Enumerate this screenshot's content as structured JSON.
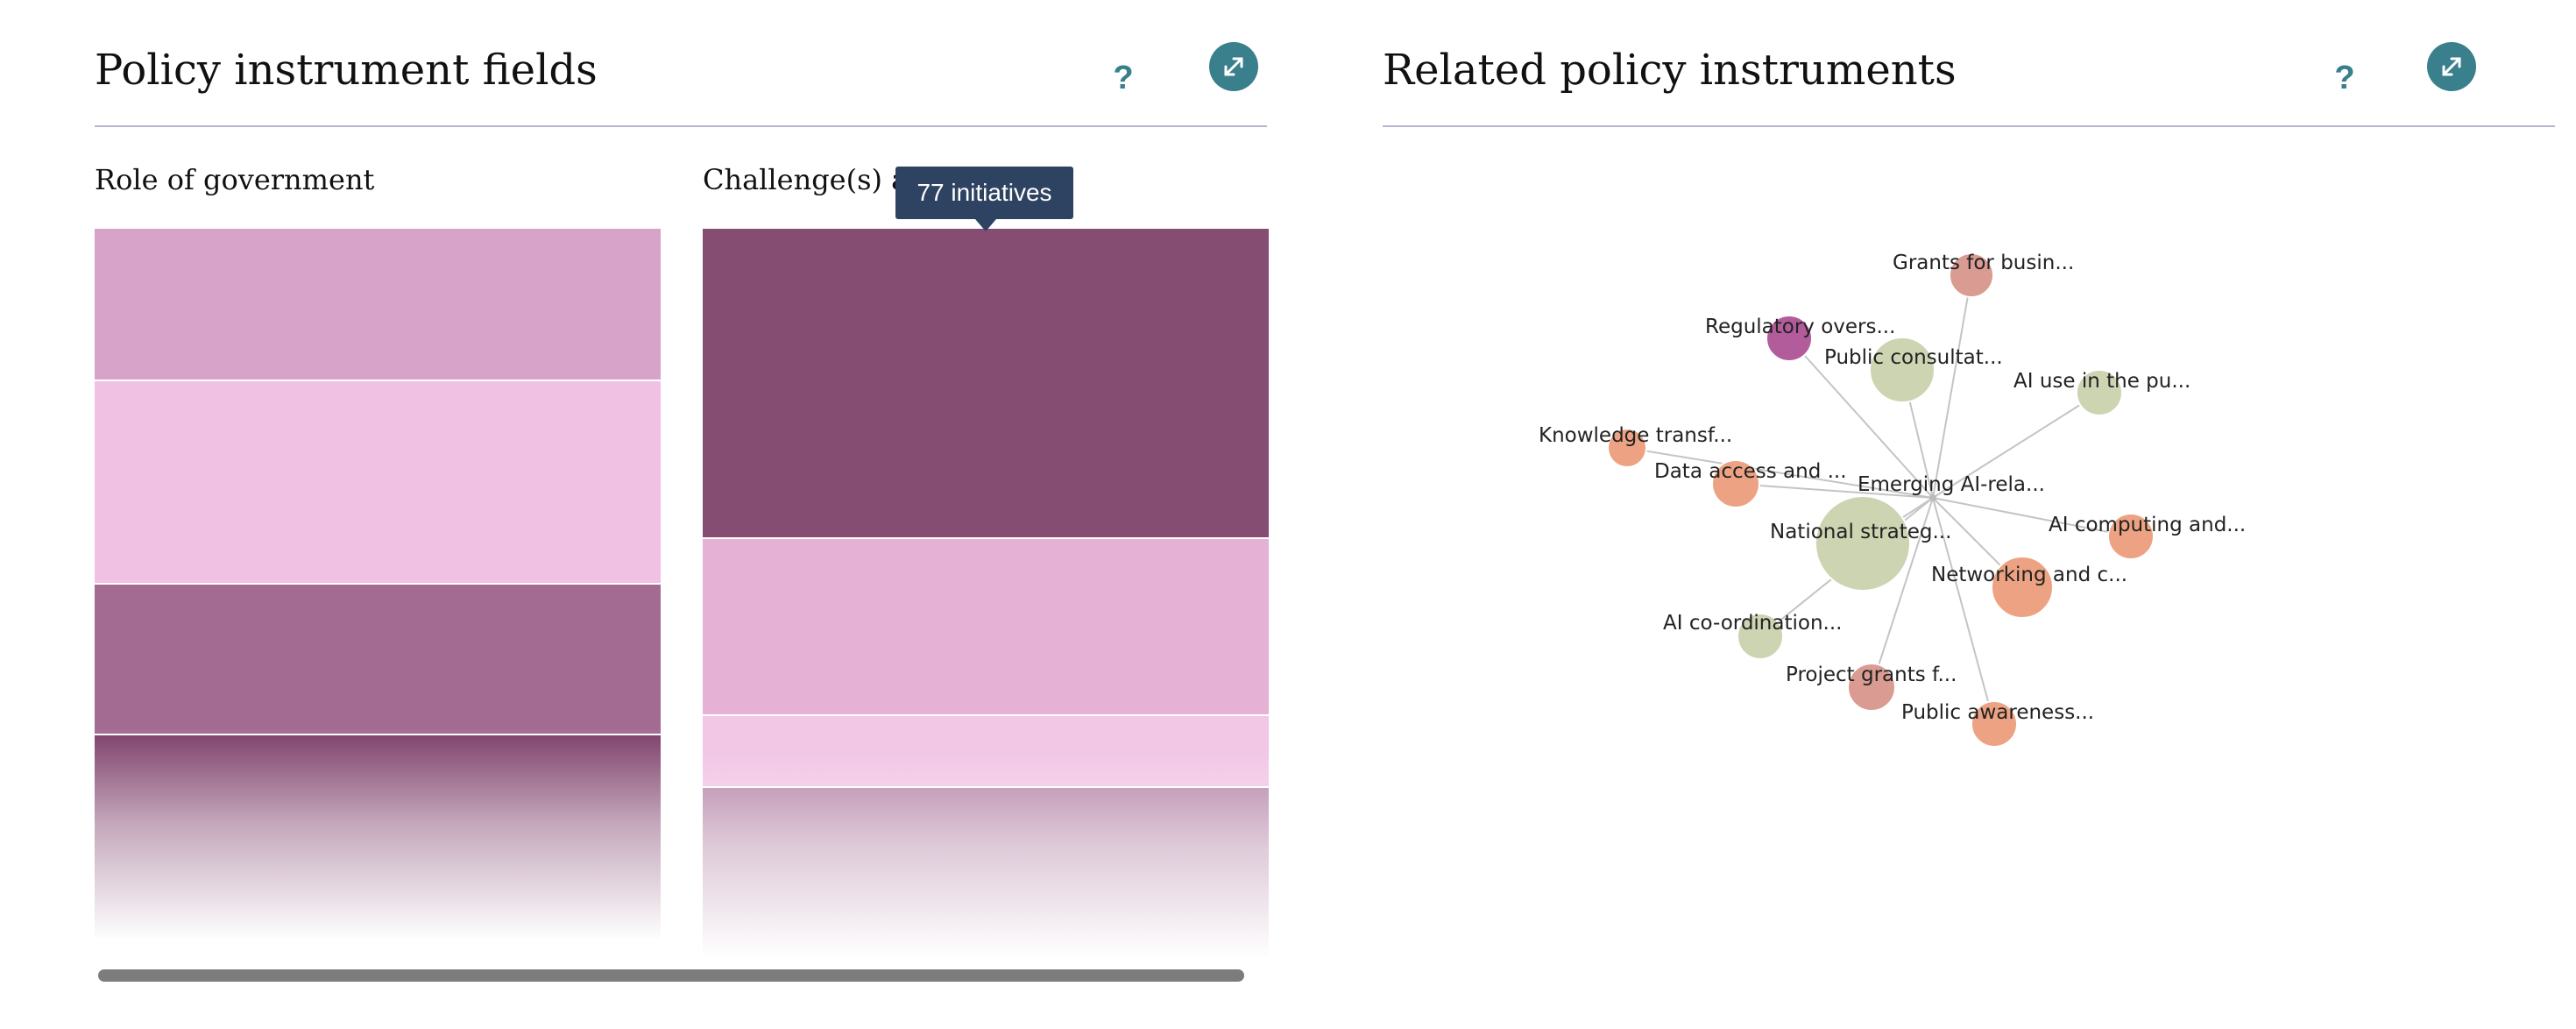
{
  "fields_panel": {
    "title": "Policy instrument fields",
    "help_label": "?",
    "expand_icon": "expand-arrows-icon",
    "columns": [
      {
        "title": "Role of government",
        "segments": [
          {
            "color": "#d8a3c8"
          },
          {
            "color": "#f0c1e3"
          },
          {
            "color": "#a36b91"
          },
          {
            "color": "#7d3e69"
          }
        ]
      },
      {
        "title": "Challenge(s) addressed",
        "segments": [
          {
            "color": "#864d73"
          },
          {
            "color": "#e5b2d6"
          },
          {
            "color": "#f2c7e6"
          },
          {
            "color": "#b789aa"
          }
        ]
      }
    ],
    "tooltip": "77 initiatives"
  },
  "related_panel": {
    "title": "Related policy instruments",
    "help_label": "?",
    "expand_icon": "expand-arrows-icon",
    "network": {
      "center": "Emerging AI-rela...",
      "nodes": [
        {
          "label": "Grants for busin...",
          "color": "#d99b92"
        },
        {
          "label": "Regulatory overs...",
          "color": "#b35c9c"
        },
        {
          "label": "Public consultat...",
          "color": "#cdd4b2"
        },
        {
          "label": "AI use in the pu...",
          "color": "#cdd4b2"
        },
        {
          "label": "Knowledge transf...",
          "color": "#eda383"
        },
        {
          "label": "Data access and ...",
          "color": "#eda383"
        },
        {
          "label": "National strateg...",
          "color": "#cdd4b2"
        },
        {
          "label": "AI computing and...",
          "color": "#eda383"
        },
        {
          "label": "Networking and c...",
          "color": "#eda383"
        },
        {
          "label": "AI co-ordination...",
          "color": "#cdd4b2"
        },
        {
          "label": "Project grants f...",
          "color": "#d99b92"
        },
        {
          "label": "Public awareness...",
          "color": "#eda383"
        }
      ]
    }
  }
}
